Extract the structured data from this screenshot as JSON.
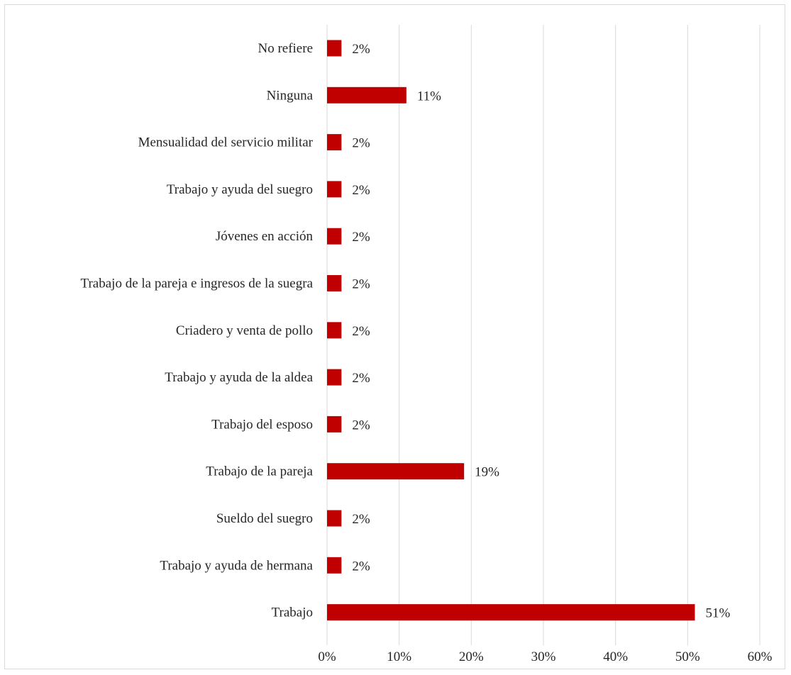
{
  "chart_data": {
    "type": "bar",
    "orientation": "horizontal",
    "categories": [
      "No refiere",
      "Ninguna",
      "Mensualidad del servicio militar",
      "Trabajo y ayuda del suegro",
      "Jóvenes en acción",
      "Trabajo de la pareja e ingresos de la suegra",
      "Criadero y venta de pollo",
      "Trabajo y ayuda de la aldea ",
      "Trabajo del esposo",
      "Trabajo de la pareja",
      "Sueldo del suegro",
      "Trabajo y ayuda de hermana",
      "Trabajo"
    ],
    "values": [
      2,
      11,
      2,
      2,
      2,
      2,
      2,
      2,
      2,
      19,
      2,
      2,
      51
    ],
    "data_labels": [
      "2%",
      "11%",
      "2%",
      "2%",
      "2%",
      "2%",
      "2%",
      "2%",
      "2%",
      "19%",
      "2%",
      "2%",
      "51%"
    ],
    "xlim": [
      0,
      60
    ],
    "xticks": [
      0,
      10,
      20,
      30,
      40,
      50,
      60
    ],
    "xtick_labels": [
      "0%",
      "10%",
      "20%",
      "30%",
      "40%",
      "50%",
      "60%"
    ],
    "title": "",
    "xlabel": "",
    "ylabel": "",
    "grid": "vertical",
    "legend": "none",
    "bar_color": "#c00000",
    "grid_color": "#d9d9d9",
    "text_color": "#262626"
  }
}
